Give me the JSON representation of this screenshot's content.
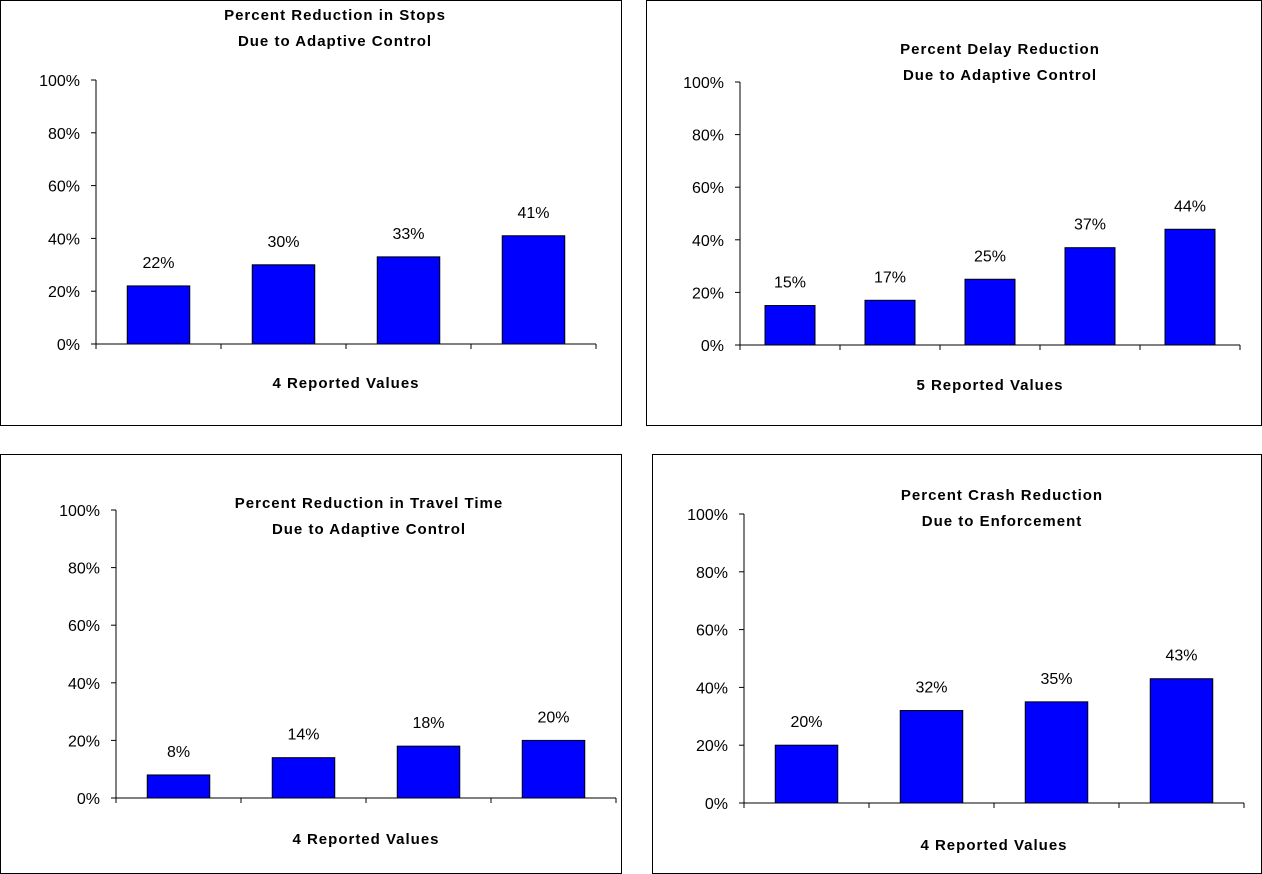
{
  "chart_data": [
    {
      "type": "bar",
      "title": [
        "Percent Reduction in Stops",
        "Due to Adaptive Control"
      ],
      "xlabel": "4 Reported Values",
      "ylabel": "",
      "ylim": [
        0,
        100
      ],
      "yticks": [
        "0%",
        "20%",
        "40%",
        "60%",
        "80%",
        "100%"
      ],
      "values": [
        22,
        30,
        33,
        41
      ],
      "value_labels": [
        "22%",
        "30%",
        "33%",
        "41%"
      ],
      "bar_color": "#0000FF",
      "grid": false,
      "legend": "none"
    },
    {
      "type": "bar",
      "title": [
        "Percent Delay Reduction",
        "Due to Adaptive Control"
      ],
      "xlabel": "5 Reported Values",
      "ylabel": "",
      "ylim": [
        0,
        100
      ],
      "yticks": [
        "0%",
        "20%",
        "40%",
        "60%",
        "80%",
        "100%"
      ],
      "values": [
        15,
        17,
        25,
        37,
        44
      ],
      "value_labels": [
        "15%",
        "17%",
        "25%",
        "37%",
        "44%"
      ],
      "bar_color": "#0000FF",
      "grid": false,
      "legend": "none"
    },
    {
      "type": "bar",
      "title": [
        "Percent Reduction in Travel Time",
        "Due to Adaptive Control"
      ],
      "xlabel": "4 Reported Values",
      "ylabel": "",
      "ylim": [
        0,
        100
      ],
      "yticks": [
        "0%",
        "20%",
        "40%",
        "60%",
        "80%",
        "100%"
      ],
      "values": [
        8,
        14,
        18,
        20
      ],
      "value_labels": [
        "8%",
        "14%",
        "18%",
        "20%"
      ],
      "bar_color": "#0000FF",
      "grid": false,
      "legend": "none"
    },
    {
      "type": "bar",
      "title": [
        "Percent Crash Reduction",
        "Due to Enforcement"
      ],
      "xlabel": "4 Reported Values",
      "ylabel": "",
      "ylim": [
        0,
        100
      ],
      "yticks": [
        "0%",
        "20%",
        "40%",
        "60%",
        "80%",
        "100%"
      ],
      "values": [
        20,
        32,
        35,
        43
      ],
      "value_labels": [
        "20%",
        "32%",
        "35%",
        "43%"
      ],
      "bar_color": "#0000FF",
      "grid": false,
      "legend": "none"
    }
  ]
}
